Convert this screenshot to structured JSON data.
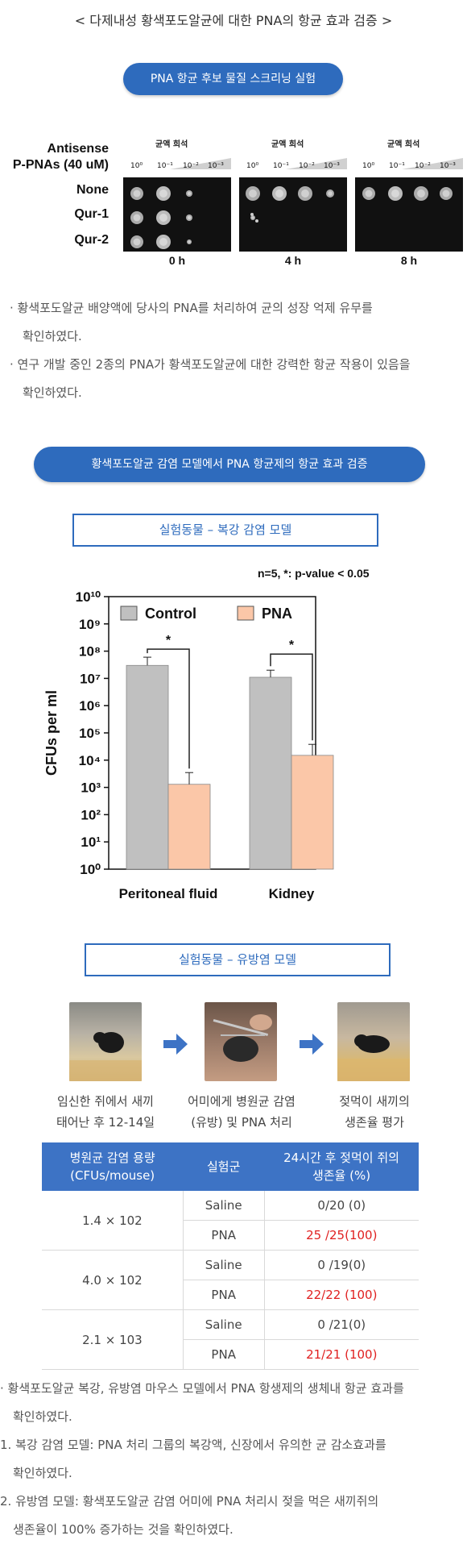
{
  "header": {
    "title": "< 다제내성 황색포도알균에 대한 PNA의 항균 효과 검증 >"
  },
  "section1": {
    "pill": "PNA 항균 후보 물질 스크리닝 실험",
    "row_header": [
      "Antisense",
      "P-PNAs (40 uM)"
    ],
    "dilution_label": "균액 희석",
    "dilutions": [
      "10⁰",
      "10⁻¹",
      "10⁻²",
      "10⁻³"
    ],
    "rows": [
      "None",
      "Qur-1",
      "Qur-2"
    ],
    "timepoints": [
      "0 h",
      "4 h",
      "8 h"
    ],
    "bullets": [
      "· 황색포도알균 배양액에 당사의 PNA를 처리하여 균의 성장 억제 유무를",
      "확인하였다.",
      "· 연구 개발 중인 2종의 PNA가 황색포도알균에 대한 강력한 항균 작용이 있음을",
      "확인하였다."
    ]
  },
  "section2": {
    "pill": "황색포도알균 감염 모델에서 PNA 항균제의 항균 효과 검증",
    "box_title": "실험동물 – 복강 감염 모델",
    "stat_note": "n=5, *: p-value < 0.05"
  },
  "chart_data": {
    "type": "bar",
    "categories": [
      "Peritoneal fluid",
      "Kidney"
    ],
    "series": [
      {
        "name": "Control",
        "values": [
          30000000,
          11000000
        ],
        "error_upper": [
          60000000,
          20000000
        ],
        "color": "#c0c0c0"
      },
      {
        "name": "PNA",
        "values": [
          1300,
          15000
        ],
        "error_upper": [
          3500,
          38000
        ],
        "color": "#fbc7a8"
      }
    ],
    "ylabel": "CFUs per ml",
    "xlabel": "",
    "y_scale": "log",
    "ylim": [
      1,
      10000000000
    ],
    "yticks": [
      "10⁰",
      "10¹",
      "10²",
      "10³",
      "10⁴",
      "10⁵",
      "10⁶",
      "10⁷",
      "10⁸",
      "10⁹",
      "10¹⁰"
    ],
    "significance": [
      "*",
      "*"
    ],
    "legend": "top-inside"
  },
  "section3": {
    "box_title": "실험동물 – 유방염 모델",
    "steps": [
      {
        "line1": "임신한 쥐에서 새끼",
        "line2": "태어난 후 12-14일"
      },
      {
        "line1": "어미에게 병원균 감염",
        "line2": "(유방) 및 PNA 처리"
      },
      {
        "line1": "젖먹이 새끼의",
        "line2": "생존율 평가"
      }
    ],
    "table": {
      "headers": [
        [
          "병원균 감염 용량",
          "(CFUs/mouse)"
        ],
        [
          "실험군"
        ],
        [
          "24시간 후 젖먹이 쥐의",
          "생존율 (%)"
        ]
      ],
      "groups": [
        {
          "dose": "1.4 × 102",
          "rows": [
            {
              "group": "Saline",
              "survival": "0/20 (0)",
              "highlight": false
            },
            {
              "group": "PNA",
              "survival": "25 /25(100)",
              "highlight": true
            }
          ]
        },
        {
          "dose": "4.0 × 102",
          "rows": [
            {
              "group": "Saline",
              "survival": "0 /19(0)",
              "highlight": false
            },
            {
              "group": "PNA",
              "survival": "22/22 (100)",
              "highlight": true
            }
          ]
        },
        {
          "dose": "2.1 × 103",
          "rows": [
            {
              "group": "Saline",
              "survival": "0 /21(0)",
              "highlight": false
            },
            {
              "group": "PNA",
              "survival": "21/21 (100)",
              "highlight": true
            }
          ]
        }
      ]
    },
    "bullets": [
      "· 황색포도알균 복강, 유방염 마우스 모델에서 PNA 항생제의 생체내 항균 효과를",
      "확인하였다.",
      "1. 복강 감염 모델: PNA 처리 그룹의 복강액, 신장에서 유의한 균 감소효과를",
      "확인하였다.",
      "2. 유방염 모델: 황색포도알균 감염 어미에 PNA 처리시 젖을 먹은 새끼쥐의",
      "생존율이 100% 증가하는 것을 확인하였다."
    ]
  }
}
